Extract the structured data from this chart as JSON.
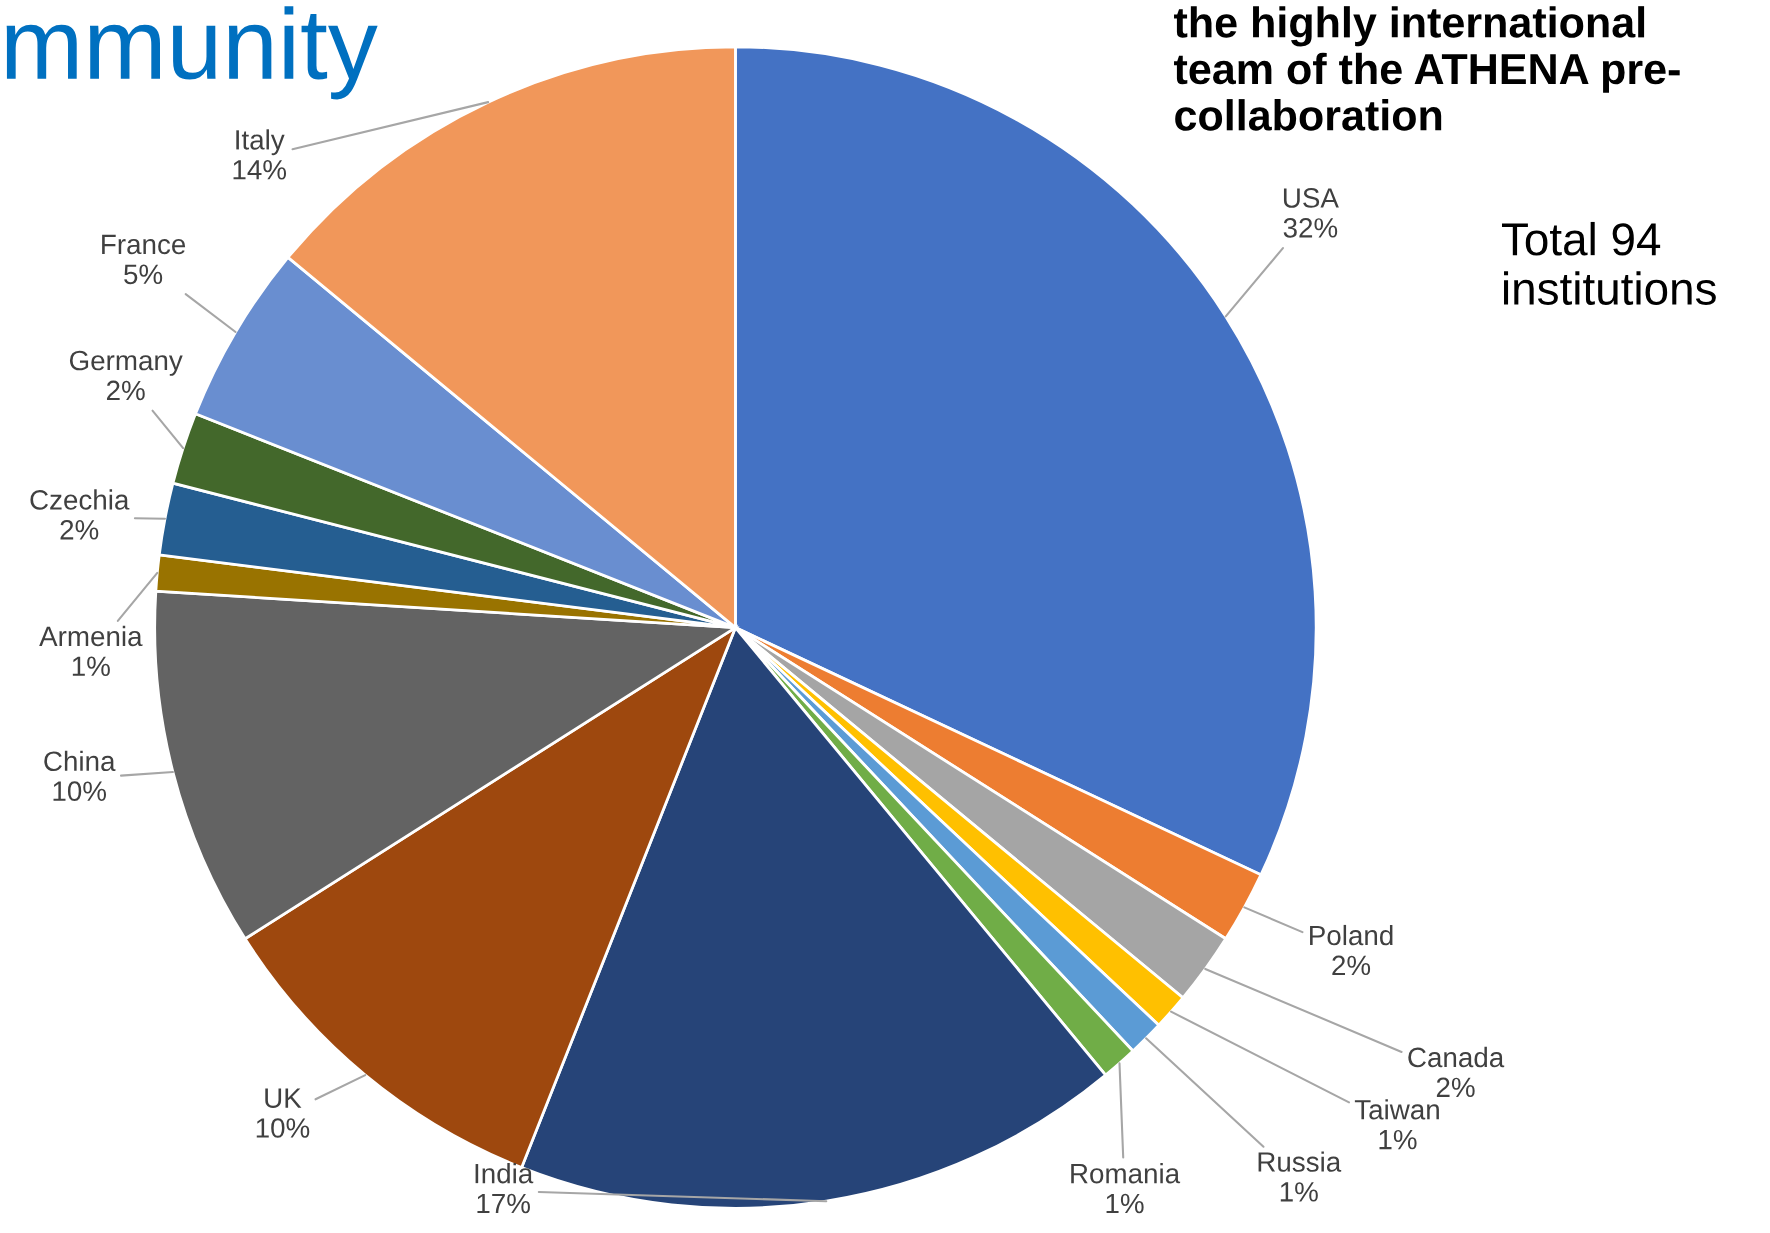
{
  "chart_data": {
    "type": "pie",
    "title": "the highly international\nteam of the ATHENA pre-\ncollaboration",
    "categories": [
      "USA",
      "Poland",
      "Canada",
      "Taiwan",
      "Russia",
      "Romania",
      "India",
      "UK",
      "China",
      "Armenia",
      "Czechia",
      "Germany",
      "France",
      "Italy"
    ],
    "values": [
      32,
      2,
      2,
      1,
      1,
      1,
      17,
      10,
      10,
      1,
      2,
      2,
      5,
      14
    ],
    "value_labels": [
      "32%",
      "2%",
      "2%",
      "1%",
      "1%",
      "1%",
      "17%",
      "10%",
      "10%",
      "1%",
      "2%",
      "2%",
      "5%",
      "14%"
    ],
    "colors": [
      "#4472c4",
      "#ed7d31",
      "#a5a5a5",
      "#ffc000",
      "#5b9bd5",
      "#70ad47",
      "#264478",
      "#9e480e",
      "#636363",
      "#997300",
      "#255e91",
      "#43682b",
      "#698ed0",
      "#f1975a"
    ],
    "annotations": [
      "mmunity",
      "Total 94\ninstitutions"
    ]
  }
}
